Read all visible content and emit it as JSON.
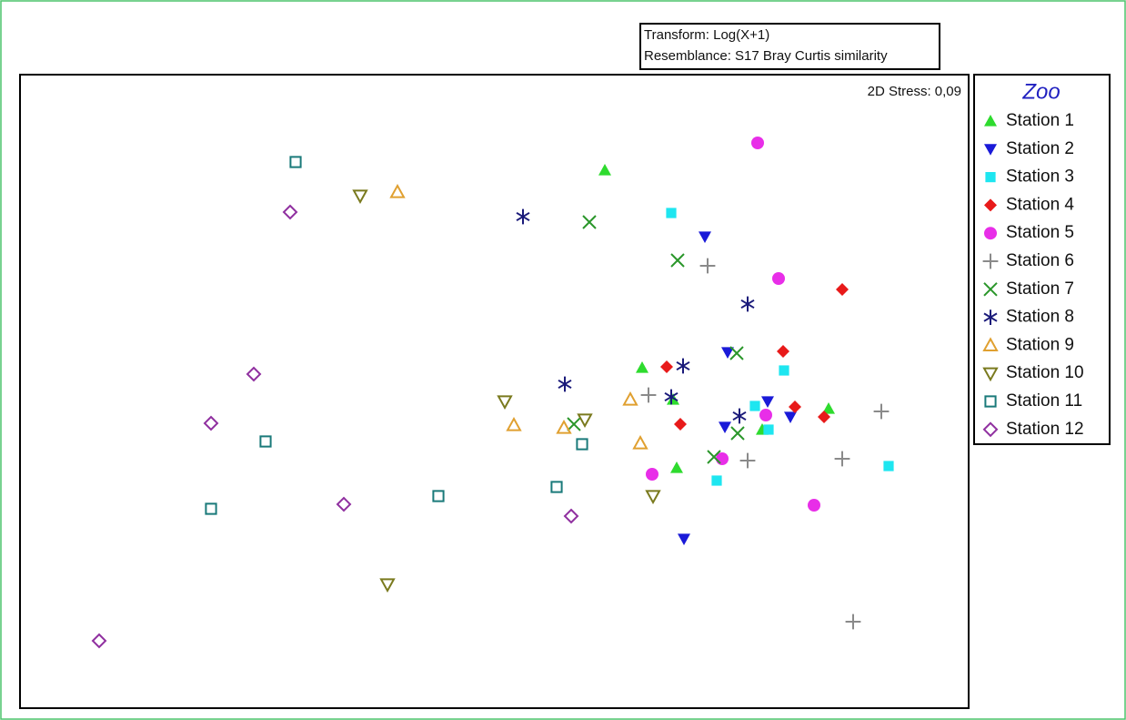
{
  "chart_data": {
    "type": "scatter",
    "transform_label": "Transform: Log(X+1)",
    "resemblance_label": "Resemblance: S17 Bray Curtis similarity",
    "stress_label": "2D Stress: 0,09",
    "legend_title": "Zoo",
    "xlim": [
      22,
      1065
    ],
    "ylim": [
      778,
      82
    ],
    "series": [
      {
        "name": "Station 1",
        "color": "#2edb2e",
        "marker": "triangle-up-filled",
        "x": [
          665,
          706,
          740,
          744,
          911,
          838
        ],
        "y": [
          187,
          404,
          439,
          514,
          449,
          472
        ]
      },
      {
        "name": "Station 2",
        "color": "#1a1ad8",
        "marker": "triangle-down-filled",
        "x": [
          775,
          800,
          844,
          869,
          797,
          752
        ],
        "y": [
          260,
          387,
          441,
          458,
          469,
          592
        ]
      },
      {
        "name": "Station 3",
        "color": "#1ee6f0",
        "marker": "square-filled",
        "x": [
          738,
          862,
          830,
          845,
          788,
          977
        ],
        "y": [
          234,
          407,
          446,
          472,
          528,
          512
        ]
      },
      {
        "name": "Station 4",
        "color": "#e81a1a",
        "marker": "diamond-filled",
        "x": [
          926,
          861,
          733,
          748,
          874,
          906
        ],
        "y": [
          318,
          386,
          403,
          466,
          447,
          458
        ]
      },
      {
        "name": "Station 5",
        "color": "#e82ee8",
        "marker": "circle-filled",
        "x": [
          833,
          856,
          717,
          794,
          842,
          895
        ],
        "y": [
          157,
          306,
          521,
          504,
          456,
          555
        ]
      },
      {
        "name": "Station 6",
        "color": "#8a8a8a",
        "marker": "plus",
        "x": [
          778,
          713,
          822,
          926,
          969,
          938
        ],
        "y": [
          292,
          434,
          506,
          504,
          452,
          683
        ]
      },
      {
        "name": "Station 7",
        "color": "#2a962a",
        "marker": "cross",
        "x": [
          648,
          745,
          810,
          631,
          785,
          811
        ],
        "y": [
          244,
          286,
          388,
          466,
          502,
          476
        ]
      },
      {
        "name": "Station 8",
        "color": "#1a1a7a",
        "marker": "asterisk",
        "x": [
          575,
          822,
          751,
          621,
          738,
          813
        ],
        "y": [
          238,
          334,
          402,
          422,
          436,
          457
        ]
      },
      {
        "name": "Station 9",
        "color": "#e0a030",
        "marker": "triangle-up-open",
        "x": [
          437,
          565,
          620,
          693,
          704
        ],
        "y": [
          211,
          467,
          470,
          439,
          487
        ]
      },
      {
        "name": "Station 10",
        "color": "#7a7a1e",
        "marker": "triangle-down-open",
        "x": [
          396,
          555,
          643,
          718,
          426
        ],
        "y": [
          215,
          441,
          461,
          545,
          642
        ]
      },
      {
        "name": "Station 11",
        "color": "#1a7a7a",
        "marker": "square-open",
        "x": [
          325,
          292,
          232,
          482,
          612,
          640
        ],
        "y": [
          178,
          485,
          559,
          545,
          535,
          488
        ]
      },
      {
        "name": "Station 12",
        "color": "#9030a0",
        "marker": "diamond-open",
        "x": [
          319,
          279,
          232,
          378,
          628,
          109
        ],
        "y": [
          233,
          411,
          465,
          554,
          567,
          704
        ]
      }
    ]
  }
}
